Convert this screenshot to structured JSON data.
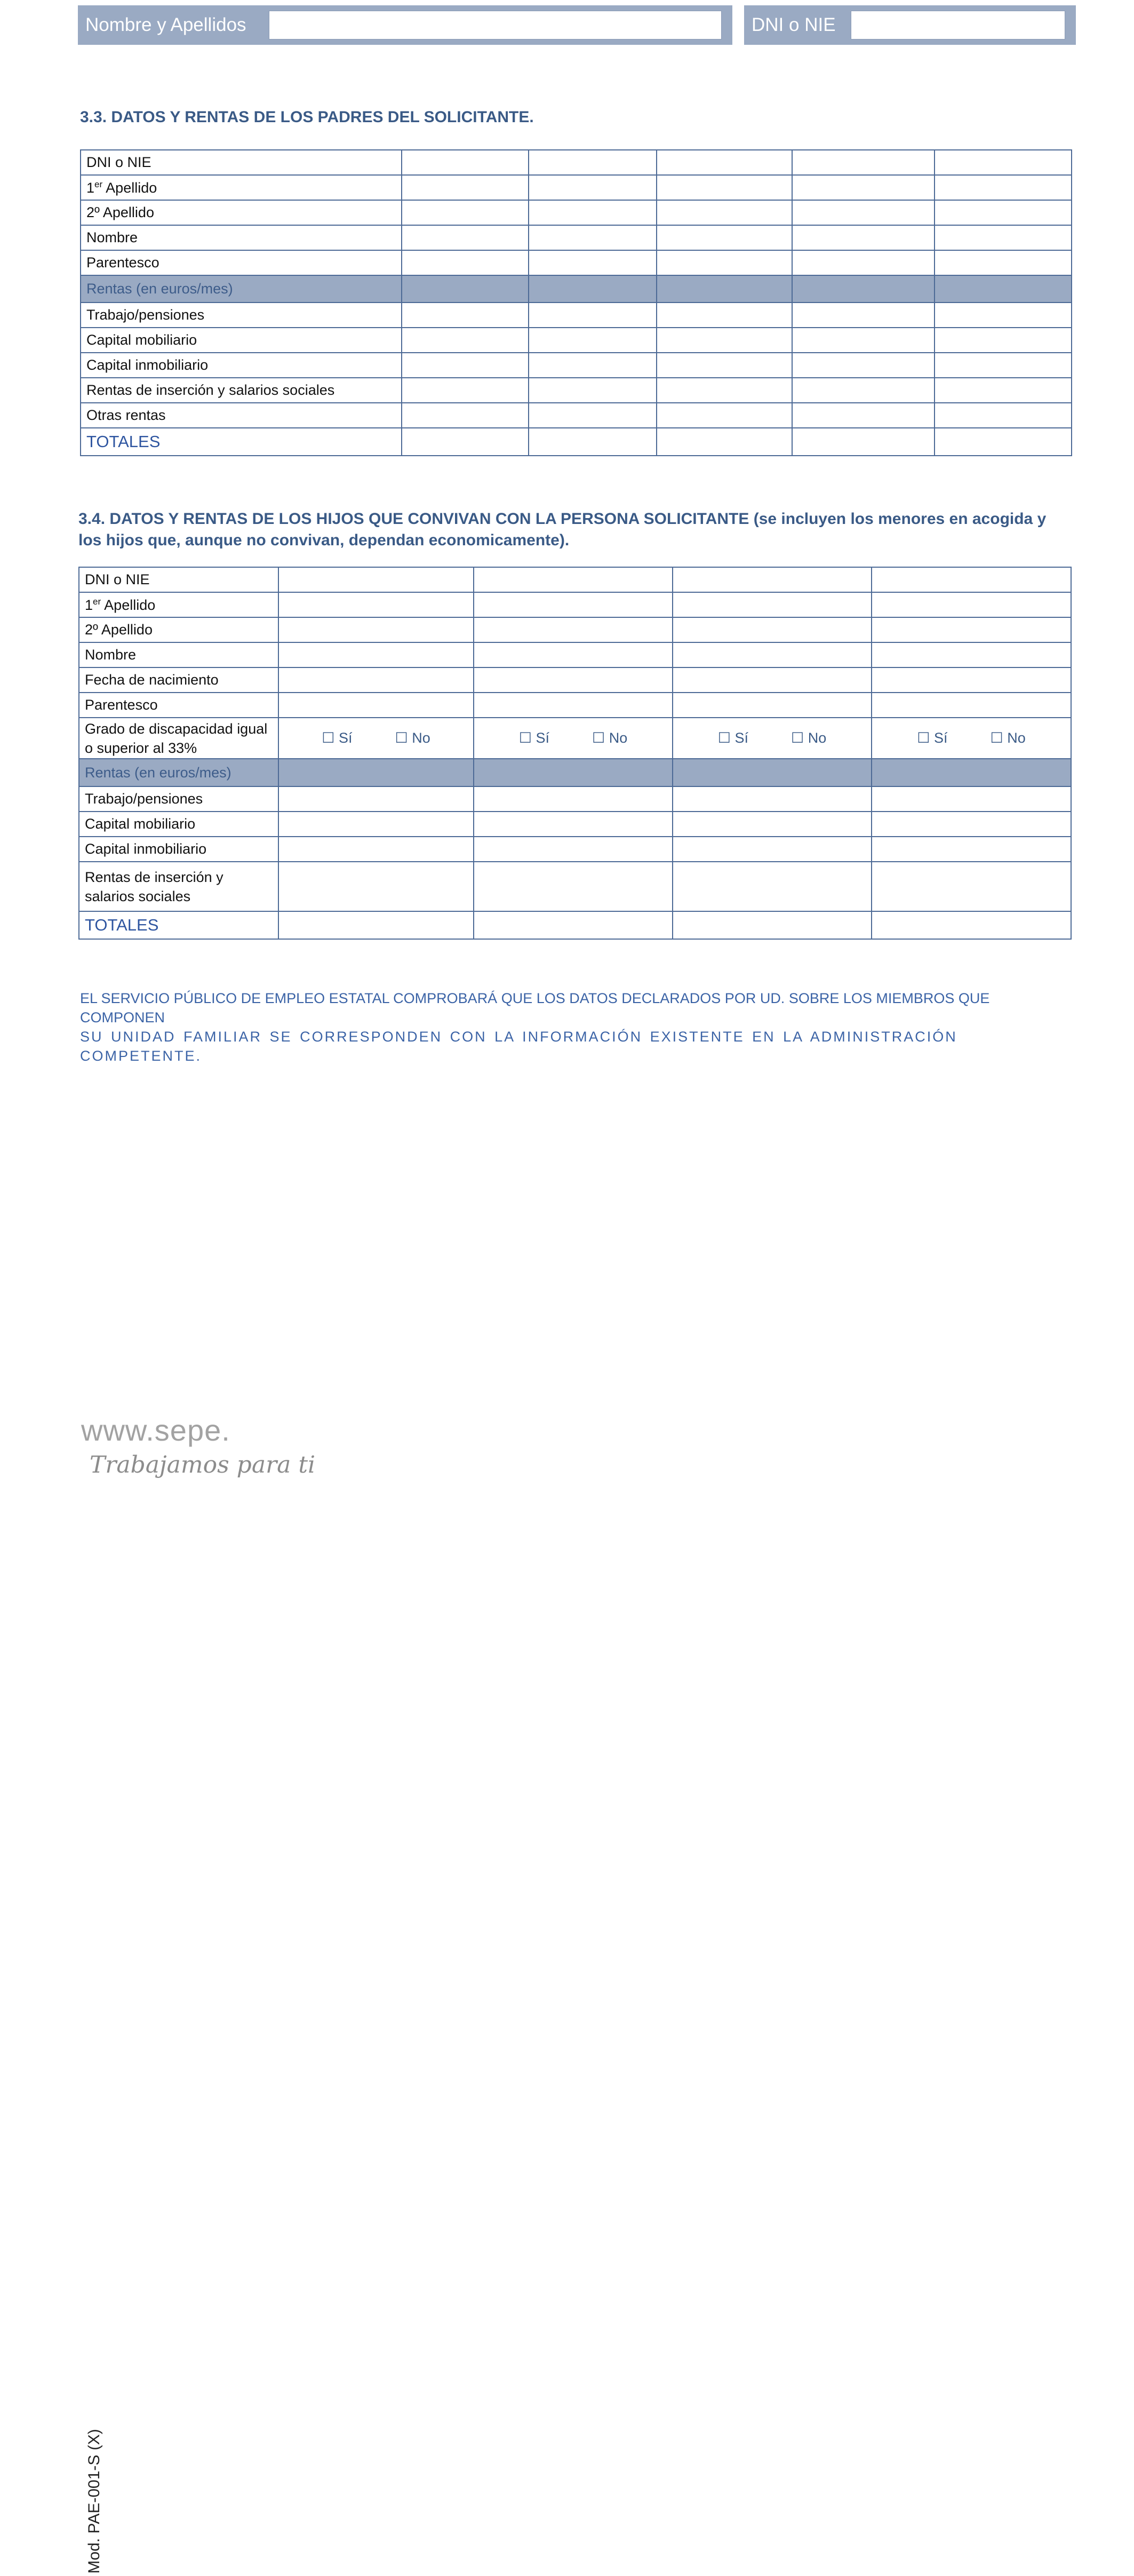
{
  "header": {
    "name_label": "Nombre y Apellidos",
    "name_value": "",
    "dni_label": "DNI o NIE",
    "dni_value": ""
  },
  "section_33": {
    "title": "3.3. DATOS Y RENTAS DE LOS PADRES DEL SOLICITANTE.",
    "rows": [
      "DNI o NIE",
      "1er Apellido",
      "2º Apellido",
      "Nombre",
      "Parentesco",
      "Rentas (en euros/mes)",
      "Trabajo/pensiones",
      "Capital mobiliario",
      "Capital inmobiliario",
      "Rentas de inserción y salarios sociales",
      "Otras rentas",
      "TOTALES"
    ],
    "data_columns": 5
  },
  "section_34": {
    "title": "3.4. DATOS Y RENTAS DE LOS HIJOS QUE CONVIVAN CON LA PERSONA SOLICITANTE (se incluyen los menores en acogida y los hijos que, aunque no convivan, dependan economicamente).",
    "rows": [
      "DNI o NIE",
      "1er Apellido",
      "2º Apellido",
      "Nombre",
      "Fecha de nacimiento",
      "Parentesco",
      "Grado de discapacidad igual o superior al 33%",
      "Rentas (en euros/mes)",
      "Trabajo/pensiones",
      "Capital mobiliario",
      "Capital inmobiliario",
      "Rentas de inserción y salarios sociales",
      "TOTALES"
    ],
    "data_columns": 4,
    "checkbox_yes": "☐ Sí",
    "checkbox_no": "☐ No"
  },
  "notice": {
    "line1": "EL SERVICIO PÚBLICO DE EMPLEO ESTATAL COMPROBARÁ QUE LOS DATOS DECLARADOS POR UD. SOBRE LOS MIEMBROS QUE COMPONEN",
    "line2": "SU UNIDAD FAMILIAR SE CORRESPONDEN CON LA  INFORMACIÓN EXISTENTE EN LA  ADMINISTRACIÓN COMPETENTE."
  },
  "form_code": "Mod. PAE-001-S (X)",
  "footer": {
    "site": "www.sepe.",
    "tagline": "Trabajamos para ti"
  }
}
